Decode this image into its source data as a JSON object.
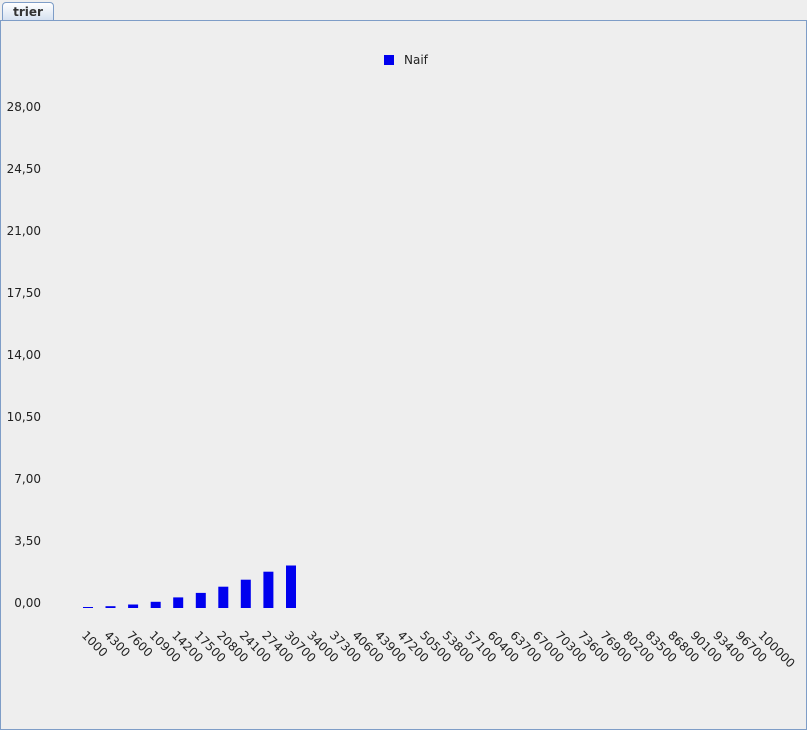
{
  "tab": {
    "label": "trier"
  },
  "legend": {
    "position": "top"
  },
  "colors": {
    "series": "#0000ee",
    "border": "#7e9dc7",
    "background": "#eeeeee"
  },
  "chart_data": {
    "type": "bar",
    "title": "",
    "xlabel": "",
    "ylabel": "",
    "ylim": [
      0,
      28
    ],
    "yticks": [
      "0,00",
      "3,50",
      "7,00",
      "10,50",
      "14,00",
      "17,50",
      "21,00",
      "24,50",
      "28,00"
    ],
    "grid": false,
    "categories": [
      "1000",
      "4300",
      "7600",
      "10900",
      "14200",
      "17500",
      "20800",
      "24100",
      "27400",
      "30700",
      "34000",
      "37300",
      "40600",
      "43900",
      "47200",
      "50500",
      "53800",
      "57100",
      "60400",
      "63700",
      "67000",
      "70300",
      "73600",
      "76900",
      "80200",
      "83500",
      "86800",
      "90100",
      "93400",
      "96700",
      "100000"
    ],
    "series": [
      {
        "name": "Naif",
        "values": [
          0.05,
          0.1,
          0.2,
          0.35,
          0.6,
          0.85,
          1.2,
          1.6,
          2.05,
          2.4,
          null,
          null,
          null,
          null,
          null,
          null,
          null,
          null,
          null,
          null,
          null,
          null,
          null,
          null,
          null,
          null,
          null,
          null,
          null,
          null,
          null
        ]
      }
    ]
  }
}
